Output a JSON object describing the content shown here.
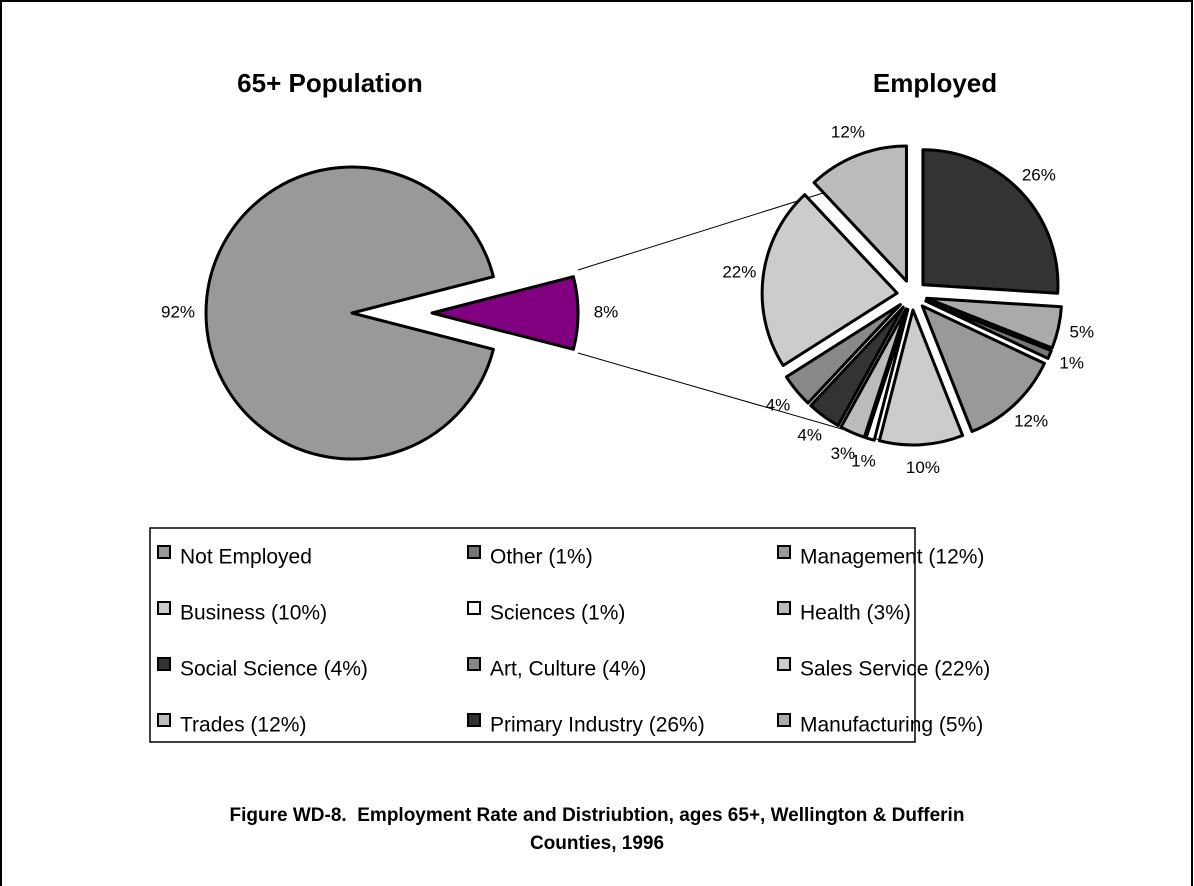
{
  "chart_data": [
    {
      "type": "pie",
      "title": "65+ Population",
      "categories": [
        "Not Employed",
        null
      ],
      "values": [
        92,
        8
      ],
      "value_labels": [
        "92%",
        "8%"
      ],
      "colors": [
        "#999999",
        "#800080"
      ]
    },
    {
      "type": "pie",
      "title": "Employed",
      "categories": [
        "Other (1%)",
        "Management (12%)",
        "Business (10%)",
        "Sciences (1%)",
        "Health (3%)",
        "Social Science (4%)",
        "Art, Culture (4%)",
        "Sales Service (22%)",
        "Trades (12%)",
        "Primary Industry (26%)",
        "Manufacturing (5%)"
      ],
      "values": [
        1,
        12,
        10,
        1,
        3,
        4,
        4,
        22,
        12,
        26,
        5
      ],
      "value_labels": [
        "1%",
        "12%",
        "10%",
        "1%",
        "3%",
        "4%",
        "4%",
        "22%",
        "12%",
        "26%",
        "5%"
      ],
      "colors": [
        "#777777",
        "#999999",
        "#cccccc",
        "#ffffff",
        "#bbbbbb",
        "#333333",
        "#888888",
        "#cccccc",
        "#bbbbbb",
        "#333333",
        "#aaaaaa"
      ]
    }
  ],
  "caption": "Figure WD-8.  Employment Rate and Distriubtion, ages 65+, Wellington & Dufferin Counties, 1996"
}
